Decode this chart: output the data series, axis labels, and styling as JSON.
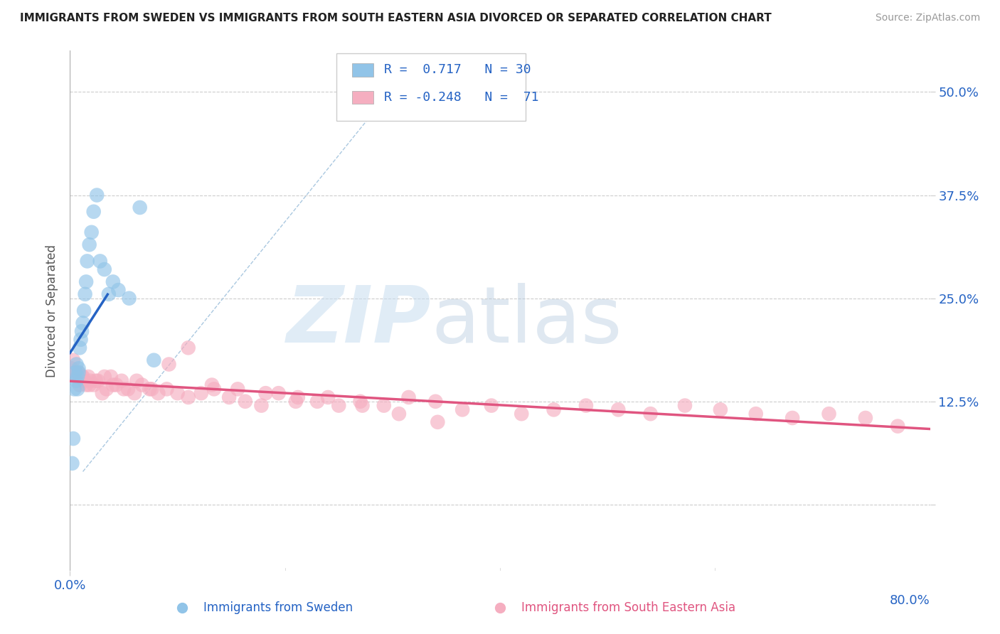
{
  "title": "IMMIGRANTS FROM SWEDEN VS IMMIGRANTS FROM SOUTH EASTERN ASIA DIVORCED OR SEPARATED CORRELATION CHART",
  "source": "Source: ZipAtlas.com",
  "ylabel": "Divorced or Separated",
  "xlim": [
    0.0,
    0.8
  ],
  "ylim": [
    -0.08,
    0.55
  ],
  "yticks": [
    0.0,
    0.125,
    0.25,
    0.375,
    0.5
  ],
  "ytick_labels": [
    "",
    "12.5%",
    "25.0%",
    "37.5%",
    "50.0%"
  ],
  "grid_color": "#cccccc",
  "background_color": "#ffffff",
  "legend_R1": "0.717",
  "legend_N1": "30",
  "legend_R2": "-0.248",
  "legend_N2": "71",
  "color_blue": "#91c4e8",
  "color_pink": "#f5aec0",
  "color_blue_line": "#2563c4",
  "color_pink_line": "#e05580",
  "color_text_blue": "#2563c4",
  "legend_label1": "Immigrants from Sweden",
  "legend_label2": "Immigrants from South Eastern Asia",
  "blue_x": [
    0.002,
    0.003,
    0.004,
    0.005,
    0.006,
    0.006,
    0.007,
    0.007,
    0.008,
    0.008,
    0.009,
    0.01,
    0.011,
    0.012,
    0.013,
    0.014,
    0.015,
    0.016,
    0.018,
    0.02,
    0.022,
    0.025,
    0.028,
    0.032,
    0.036,
    0.04,
    0.045,
    0.055,
    0.065,
    0.078
  ],
  "blue_y": [
    0.05,
    0.08,
    0.14,
    0.16,
    0.15,
    0.17,
    0.155,
    0.14,
    0.16,
    0.165,
    0.19,
    0.2,
    0.21,
    0.22,
    0.235,
    0.255,
    0.27,
    0.295,
    0.315,
    0.33,
    0.355,
    0.375,
    0.295,
    0.285,
    0.255,
    0.27,
    0.26,
    0.25,
    0.36,
    0.175
  ],
  "pink_x": [
    0.001,
    0.003,
    0.005,
    0.007,
    0.009,
    0.011,
    0.013,
    0.015,
    0.017,
    0.019,
    0.022,
    0.026,
    0.03,
    0.034,
    0.038,
    0.043,
    0.048,
    0.054,
    0.06,
    0.067,
    0.074,
    0.082,
    0.09,
    0.1,
    0.11,
    0.122,
    0.134,
    0.148,
    0.163,
    0.178,
    0.194,
    0.212,
    0.23,
    0.25,
    0.27,
    0.292,
    0.315,
    0.34,
    0.365,
    0.392,
    0.42,
    0.45,
    0.48,
    0.51,
    0.54,
    0.572,
    0.605,
    0.638,
    0.672,
    0.706,
    0.74,
    0.77,
    0.008,
    0.012,
    0.018,
    0.024,
    0.032,
    0.04,
    0.05,
    0.062,
    0.076,
    0.092,
    0.11,
    0.132,
    0.156,
    0.182,
    0.21,
    0.24,
    0.272,
    0.306,
    0.342
  ],
  "pink_y": [
    0.165,
    0.175,
    0.16,
    0.155,
    0.145,
    0.155,
    0.15,
    0.145,
    0.155,
    0.15,
    0.145,
    0.15,
    0.135,
    0.14,
    0.155,
    0.145,
    0.15,
    0.14,
    0.135,
    0.145,
    0.14,
    0.135,
    0.14,
    0.135,
    0.13,
    0.135,
    0.14,
    0.13,
    0.125,
    0.12,
    0.135,
    0.13,
    0.125,
    0.12,
    0.125,
    0.12,
    0.13,
    0.125,
    0.115,
    0.12,
    0.11,
    0.115,
    0.12,
    0.115,
    0.11,
    0.12,
    0.115,
    0.11,
    0.105,
    0.11,
    0.105,
    0.095,
    0.16,
    0.155,
    0.145,
    0.15,
    0.155,
    0.145,
    0.14,
    0.15,
    0.14,
    0.17,
    0.19,
    0.145,
    0.14,
    0.135,
    0.125,
    0.13,
    0.12,
    0.11,
    0.1
  ]
}
